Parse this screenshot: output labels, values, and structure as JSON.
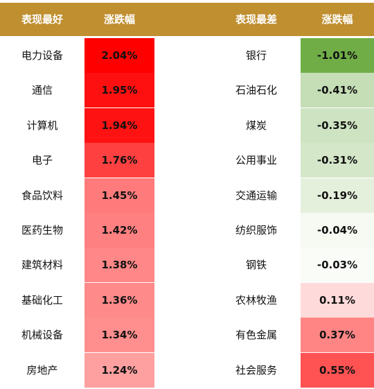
{
  "colors": {
    "header_bg": "#BF8F30",
    "header_text": "#FFFFFF"
  },
  "header": {
    "best_label": "表现最好",
    "best_change_label": "涨跌幅",
    "worst_label": "表现最差",
    "worst_change_label": "涨跌幅"
  },
  "chart_data": {
    "type": "table",
    "columns": [
      "表现最好",
      "涨跌幅",
      "表现最差",
      "涨跌幅"
    ],
    "best": [
      {
        "name": "电力设备",
        "change": "2.04%",
        "value": 2.04,
        "color": "#FF0000"
      },
      {
        "name": "通信",
        "change": "1.95%",
        "value": 1.95,
        "color": "#FF1010"
      },
      {
        "name": "计算机",
        "change": "1.94%",
        "value": 1.94,
        "color": "#FF1212"
      },
      {
        "name": "电子",
        "change": "1.76%",
        "value": 1.76,
        "color": "#FF4040"
      },
      {
        "name": "食品饮料",
        "change": "1.45%",
        "value": 1.45,
        "color": "#FF7B7B"
      },
      {
        "name": "医药生物",
        "change": "1.42%",
        "value": 1.42,
        "color": "#FF8080"
      },
      {
        "name": "建筑材料",
        "change": "1.38%",
        "value": 1.38,
        "color": "#FF8787"
      },
      {
        "name": "基础化工",
        "change": "1.36%",
        "value": 1.36,
        "color": "#FF8A8A"
      },
      {
        "name": "机械设备",
        "change": "1.34%",
        "value": 1.34,
        "color": "#FF8E8E"
      },
      {
        "name": "房地产",
        "change": "1.24%",
        "value": 1.24,
        "color": "#FFA0A0"
      }
    ],
    "worst": [
      {
        "name": "银行",
        "change": "-1.01%",
        "value": -1.01,
        "color": "#70AD47"
      },
      {
        "name": "石油石化",
        "change": "-0.41%",
        "value": -0.41,
        "color": "#C5DEB6"
      },
      {
        "name": "煤炭",
        "change": "-0.35%",
        "value": -0.35,
        "color": "#CDE3C1"
      },
      {
        "name": "公用事业",
        "change": "-0.31%",
        "value": -0.31,
        "color": "#D4E7C9"
      },
      {
        "name": "交通运输",
        "change": "-0.19%",
        "value": -0.19,
        "color": "#E4F0DC"
      },
      {
        "name": "纺织服饰",
        "change": "-0.04%",
        "value": -0.04,
        "color": "#F6FAF3"
      },
      {
        "name": "钢铁",
        "change": "-0.03%",
        "value": -0.03,
        "color": "#FAFCF8"
      },
      {
        "name": "农林牧渔",
        "change": "0.11%",
        "value": 0.11,
        "color": "#FFDADA"
      },
      {
        "name": "有色金属",
        "change": "0.37%",
        "value": 0.37,
        "color": "#FF8585"
      },
      {
        "name": "社会服务",
        "change": "0.55%",
        "value": 0.55,
        "color": "#FF5252"
      }
    ]
  }
}
